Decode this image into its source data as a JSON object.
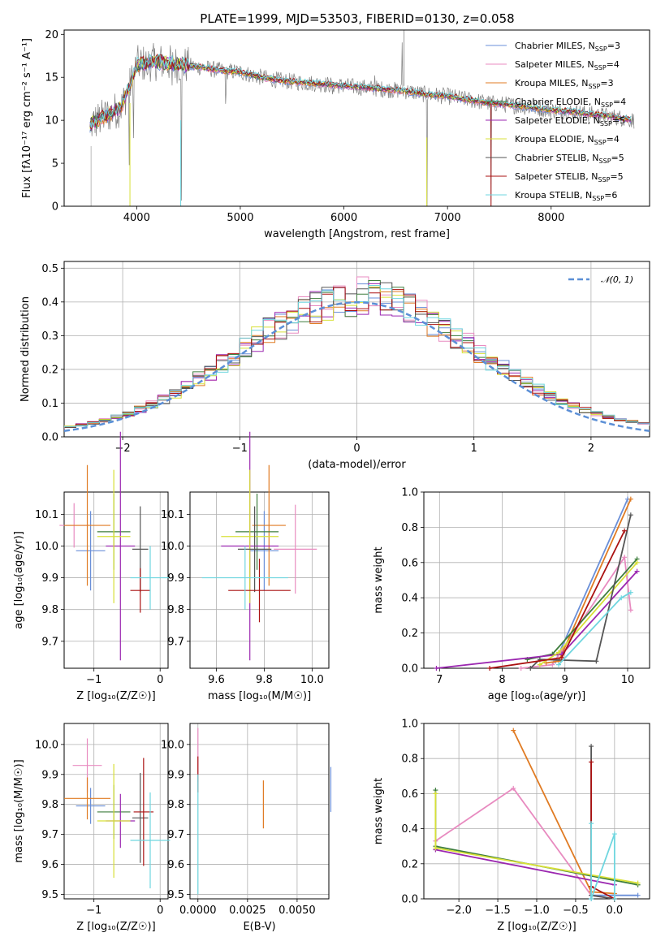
{
  "figure": {
    "title": "PLATE=1999, MJD=53503, FIBERID=0130, z=0.058"
  },
  "colors": {
    "Chabrier MILES": "#6a8fd8",
    "Salpeter MILES": "#e88bc0",
    "Kroupa MILES": "#e07b23",
    "Chabrier ELODIE": "#3d7d3d",
    "Salpeter ELODIE": "#9b27b0",
    "Kroupa ELODIE": "#d8e038",
    "Chabrier STELIB": "#555555",
    "Salpeter STELIB": "#aa1111",
    "Kroupa STELIB": "#6fd6df",
    "data": "#7f7f7f"
  },
  "chart_data": [
    {
      "type": "line",
      "xlabel": "wavelength [Angstrom, rest frame]",
      "ylabel": "Flux [fλ10⁻¹⁷ erg cm⁻² s⁻¹ A⁻¹]",
      "xlim": [
        3300,
        8950
      ],
      "ylim": [
        0,
        20.5
      ],
      "xticks": [
        "4000",
        "5000",
        "6000",
        "7000",
        "8000"
      ],
      "yticks": [
        "0",
        "5",
        "10",
        "15",
        "20"
      ],
      "legend": [
        {
          "label": "Chabrier MILES, N",
          "sub": "SSP",
          "suffix": "=3"
        },
        {
          "label": "Salpeter MILES, N",
          "sub": "SSP",
          "suffix": "=4"
        },
        {
          "label": "Kroupa MILES, N",
          "sub": "SSP",
          "suffix": "=3"
        },
        {
          "label": "Chabrier ELODIE, N",
          "sub": "SSP",
          "suffix": "=4"
        },
        {
          "label": "Salpeter ELODIE, N",
          "sub": "SSP",
          "suffix": "=5"
        },
        {
          "label": "Kroupa ELODIE, N",
          "sub": "SSP",
          "suffix": "=4"
        },
        {
          "label": "Chabrier STELIB, N",
          "sub": "SSP",
          "suffix": "=5"
        },
        {
          "label": "Salpeter STELIB, N",
          "sub": "SSP",
          "suffix": "=5"
        },
        {
          "label": "Kroupa STELIB, N",
          "sub": "SSP",
          "suffix": "=6"
        }
      ],
      "legend_position": "upper right",
      "continuum": {
        "x": [
          3550,
          3700,
          3850,
          3950,
          4000,
          4200,
          4400,
          4600,
          4800,
          5000,
          5200,
          5400,
          5600,
          5800,
          6000,
          6200,
          6400,
          6600,
          6800,
          7000,
          7200,
          7400,
          7600,
          7800,
          8000,
          8200,
          8400,
          8600,
          8800
        ],
        "y": [
          9.5,
          10.5,
          11.5,
          14.5,
          16.5,
          16.8,
          16.5,
          16.2,
          15.8,
          15.6,
          15.0,
          14.6,
          14.4,
          14.2,
          14.0,
          13.8,
          13.6,
          13.4,
          13.0,
          12.8,
          12.4,
          12.0,
          11.8,
          11.5,
          11.2,
          11.0,
          10.7,
          10.4,
          10.0
        ]
      },
      "grid": false
    },
    {
      "type": "histogram",
      "xlabel": "(data-model)/error",
      "ylabel": "Normed distribution",
      "xlim": [
        -2.5,
        2.5
      ],
      "ylim": [
        0,
        0.52
      ],
      "xticks": [
        "−2",
        "−1",
        "0",
        "1",
        "2"
      ],
      "yticks": [
        "0.0",
        "0.1",
        "0.2",
        "0.3",
        "0.4",
        "0.5"
      ],
      "bin_width": 0.1,
      "legend": [
        {
          "label": "𝒩(0, 1)"
        }
      ],
      "legend_position": "upper right",
      "grid": true
    },
    {
      "type": "scatter",
      "xlabel": "Z [log₁₀(Z/Z☉)]",
      "ylabel": "age  [log₁₀(age/yr)]",
      "xlim": [
        -1.45,
        0.12
      ],
      "ylim": [
        9.615,
        10.17
      ],
      "xticks": [
        "−1",
        "0"
      ],
      "yticks": [
        "9.7",
        "9.8",
        "9.9",
        "10.0",
        "10.1"
      ],
      "grid": true,
      "points": [
        {
          "series": "Chabrier MILES",
          "x": -1.05,
          "xerr": 0.22,
          "y": 9.985,
          "yerr": 0.125
        },
        {
          "series": "Salpeter MILES",
          "x": -1.3,
          "xerr": 0.22,
          "y": 10.065,
          "yerr": 0.07
        },
        {
          "series": "Kroupa MILES",
          "x": -1.1,
          "xerr": 0.35,
          "y": 10.065,
          "yerr": 0.19
        },
        {
          "series": "Chabrier ELODIE",
          "x": -0.7,
          "xerr": 0.25,
          "y": 10.045,
          "yerr": 0.12
        },
        {
          "series": "Salpeter ELODIE",
          "x": -0.6,
          "xerr": 0.22,
          "y": 10.0,
          "yerr": 0.36
        },
        {
          "series": "Kroupa ELODIE",
          "x": -0.7,
          "xerr": 0.25,
          "y": 10.03,
          "yerr": 0.21
        },
        {
          "series": "Chabrier STELIB",
          "x": -0.3,
          "xerr": 0.12,
          "y": 9.99,
          "yerr": 0.135
        },
        {
          "series": "Salpeter STELIB",
          "x": -0.3,
          "xerr": 0.15,
          "y": 9.86,
          "yerr": 0.07
        },
        {
          "series": "Kroupa STELIB",
          "x": -0.15,
          "xerr": 0.3,
          "y": 9.9,
          "yerr": 0.1
        }
      ]
    },
    {
      "type": "scatter",
      "xlabel": "mass [log₁₀(M/M☉)]",
      "ylabel": "",
      "xlim": [
        9.49,
        10.07
      ],
      "ylim": [
        9.615,
        10.17
      ],
      "xticks": [
        "9.6",
        "9.8",
        "10.0"
      ],
      "yticks": [
        "9.7",
        "9.8",
        "9.9",
        "10.0",
        "10.1"
      ],
      "grid": true,
      "points": [
        {
          "series": "Chabrier MILES",
          "x": 9.8,
          "xerr": 0.06,
          "y": 9.985,
          "yerr": 0.125
        },
        {
          "series": "Salpeter MILES",
          "x": 9.93,
          "xerr": 0.09,
          "y": 9.99,
          "yerr": 0.14
        },
        {
          "series": "Kroupa MILES",
          "x": 9.82,
          "xerr": 0.07,
          "y": 10.065,
          "yerr": 0.19
        },
        {
          "series": "Chabrier ELODIE",
          "x": 9.77,
          "xerr": 0.09,
          "y": 10.045,
          "yerr": 0.12
        },
        {
          "series": "Salpeter ELODIE",
          "x": 9.74,
          "xerr": 0.12,
          "y": 10.0,
          "yerr": 0.36
        },
        {
          "series": "Kroupa ELODIE",
          "x": 9.74,
          "xerr": 0.12,
          "y": 10.03,
          "yerr": 0.21
        },
        {
          "series": "Chabrier STELIB",
          "x": 9.76,
          "xerr": 0.07,
          "y": 9.99,
          "yerr": 0.135
        },
        {
          "series": "Salpeter STELIB",
          "x": 9.78,
          "xerr": 0.13,
          "y": 9.86,
          "yerr": 0.1
        },
        {
          "series": "Kroupa STELIB",
          "x": 9.72,
          "xerr": 0.18,
          "y": 9.9,
          "yerr": 0.1
        }
      ]
    },
    {
      "type": "line",
      "xlabel": "age  [log₁₀(age/yr)]",
      "ylabel": "mass weight",
      "xlim": [
        6.75,
        10.35
      ],
      "ylim": [
        0,
        1.0
      ],
      "xticks": [
        "7",
        "8",
        "9",
        "10"
      ],
      "yticks": [
        "0.0",
        "0.2",
        "0.4",
        "0.6",
        "0.8",
        "1.0"
      ],
      "grid": true,
      "series": [
        {
          "name": "Chabrier MILES",
          "x": [
            8.85,
            10.0
          ],
          "y": [
            0.04,
            0.96
          ]
        },
        {
          "name": "Salpeter MILES",
          "x": [
            8.3,
            8.8,
            9.95,
            10.05
          ],
          "y": [
            0.0,
            0.02,
            0.63,
            0.33
          ]
        },
        {
          "name": "Kroupa MILES",
          "x": [
            8.7,
            8.9,
            10.05
          ],
          "y": [
            0.03,
            0.04,
            0.96
          ]
        },
        {
          "name": "Chabrier ELODIE",
          "x": [
            8.4,
            8.8,
            10.15
          ],
          "y": [
            0.05,
            0.08,
            0.62
          ]
        },
        {
          "name": "Salpeter ELODIE",
          "x": [
            6.95,
            8.95,
            10.15
          ],
          "y": [
            0.0,
            0.08,
            0.55
          ]
        },
        {
          "name": "Kroupa ELODIE",
          "x": [
            8.6,
            8.9,
            10.15
          ],
          "y": [
            0.02,
            0.09,
            0.6
          ]
        },
        {
          "name": "Chabrier STELIB",
          "x": [
            8.45,
            8.6,
            9.5,
            10.05
          ],
          "y": [
            0.0,
            0.05,
            0.04,
            0.87
          ]
        },
        {
          "name": "Salpeter STELIB",
          "x": [
            7.8,
            8.95,
            9.95
          ],
          "y": [
            0.0,
            0.06,
            0.78
          ]
        },
        {
          "name": "Kroupa STELIB",
          "x": [
            8.9,
            9.9,
            10.05
          ],
          "y": [
            0.02,
            0.4,
            0.43
          ]
        }
      ]
    },
    {
      "type": "scatter",
      "xlabel": "Z [log₁₀(Z/Z☉)]",
      "ylabel": "mass [log₁₀(M/M☉)]",
      "xlim": [
        -1.45,
        0.12
      ],
      "ylim": [
        9.485,
        10.07
      ],
      "xticks": [
        "−1",
        "0"
      ],
      "yticks": [
        "9.5",
        "9.6",
        "9.7",
        "9.8",
        "9.9",
        "10.0"
      ],
      "grid": true,
      "points": [
        {
          "series": "Chabrier MILES",
          "x": -1.05,
          "xerr": 0.22,
          "y": 9.795,
          "yerr": 0.06
        },
        {
          "series": "Salpeter MILES",
          "x": -1.1,
          "xerr": 0.22,
          "y": 9.93,
          "yerr": 0.09
        },
        {
          "series": "Kroupa MILES",
          "x": -1.1,
          "xerr": 0.35,
          "y": 9.82,
          "yerr": 0.07
        },
        {
          "series": "Chabrier ELODIE",
          "x": -0.7,
          "xerr": 0.25,
          "y": 9.775,
          "yerr": 0.09
        },
        {
          "series": "Salpeter ELODIE",
          "x": -0.6,
          "xerr": 0.22,
          "y": 9.745,
          "yerr": 0.09
        },
        {
          "series": "Kroupa ELODIE",
          "x": -0.7,
          "xerr": 0.25,
          "y": 9.745,
          "yerr": 0.19
        },
        {
          "series": "Chabrier STELIB",
          "x": -0.3,
          "xerr": 0.12,
          "y": 9.755,
          "yerr": 0.15
        },
        {
          "series": "Salpeter STELIB",
          "x": -0.25,
          "xerr": 0.15,
          "y": 9.775,
          "yerr": 0.18
        },
        {
          "series": "Kroupa STELIB",
          "x": -0.15,
          "xerr": 0.3,
          "y": 9.68,
          "yerr": 0.16
        }
      ]
    },
    {
      "type": "scatter",
      "xlabel": "E(B-V)",
      "ylabel": "",
      "xlim": [
        -0.0004,
        0.0066
      ],
      "ylim": [
        9.485,
        10.07
      ],
      "xticks": [
        "0.0000",
        "0.0025",
        "0.0050"
      ],
      "yticks": [
        "9.5",
        "9.6",
        "9.7",
        "9.8",
        "9.9",
        "10.0"
      ],
      "grid": true,
      "points": [
        {
          "series": "Chabrier MILES",
          "x": 0.0067,
          "xerr": 0,
          "y": 9.85,
          "yerr": 0.075
        },
        {
          "series": "Salpeter MILES",
          "x": 0.0,
          "xerr": 0,
          "y": 9.965,
          "yerr": 0.09
        },
        {
          "series": "Kroupa MILES",
          "x": 0.0033,
          "xerr": 0,
          "y": 9.8,
          "yerr": 0.08
        },
        {
          "series": "Salpeter STELIB",
          "x": 0.0,
          "xerr": 0,
          "y": 9.9,
          "yerr": 0.06
        },
        {
          "series": "Kroupa STELIB",
          "x": 0.0,
          "xerr": 0,
          "y": 9.7,
          "yerr": 0.2
        }
      ]
    },
    {
      "type": "line",
      "xlabel": "Z [log₁₀(Z/Z☉)]",
      "ylabel": "mass weight",
      "xlim": [
        -2.45,
        0.45
      ],
      "ylim": [
        0,
        1.0
      ],
      "xticks": [
        "−2.0",
        "−1.5",
        "−1.0",
        "−0.5",
        "0.0"
      ],
      "yticks": [
        "0.0",
        "0.2",
        "0.4",
        "0.6",
        "0.8",
        "1.0"
      ],
      "grid": true,
      "series": [
        {
          "name": "Chabrier MILES",
          "x": [
            -0.3,
            -0.3,
            0.3
          ],
          "y": [
            0.0,
            0.02,
            0.02
          ]
        },
        {
          "name": "Salpeter MILES",
          "x": [
            -2.3,
            -1.3,
            -0.3,
            0.0
          ],
          "y": [
            0.33,
            0.63,
            0.02,
            0.0
          ]
        },
        {
          "name": "Kroupa MILES",
          "x": [
            -1.3,
            -0.3,
            0.0
          ],
          "y": [
            0.96,
            0.04,
            0.03
          ]
        },
        {
          "name": "Chabrier ELODIE",
          "x": [
            -2.3,
            -2.3,
            0.3
          ],
          "y": [
            0.62,
            0.3,
            0.08
          ]
        },
        {
          "name": "Salpeter ELODIE",
          "x": [
            -2.3,
            0.0
          ],
          "y": [
            0.28,
            0.08
          ]
        },
        {
          "name": "Kroupa ELODIE",
          "x": [
            -2.3,
            -2.3,
            0.3
          ],
          "y": [
            0.6,
            0.29,
            0.09
          ]
        },
        {
          "name": "Chabrier STELIB",
          "x": [
            -0.3,
            -0.3,
            0.0
          ],
          "y": [
            0.87,
            0.02,
            0.0
          ]
        },
        {
          "name": "Salpeter STELIB",
          "x": [
            -0.3,
            -0.3,
            0.0
          ],
          "y": [
            0.78,
            0.07,
            0.0
          ]
        },
        {
          "name": "Kroupa STELIB",
          "x": [
            -0.3,
            -0.3,
            0.0,
            0.0
          ],
          "y": [
            0.43,
            0.0,
            0.37,
            0.0
          ]
        }
      ]
    }
  ]
}
